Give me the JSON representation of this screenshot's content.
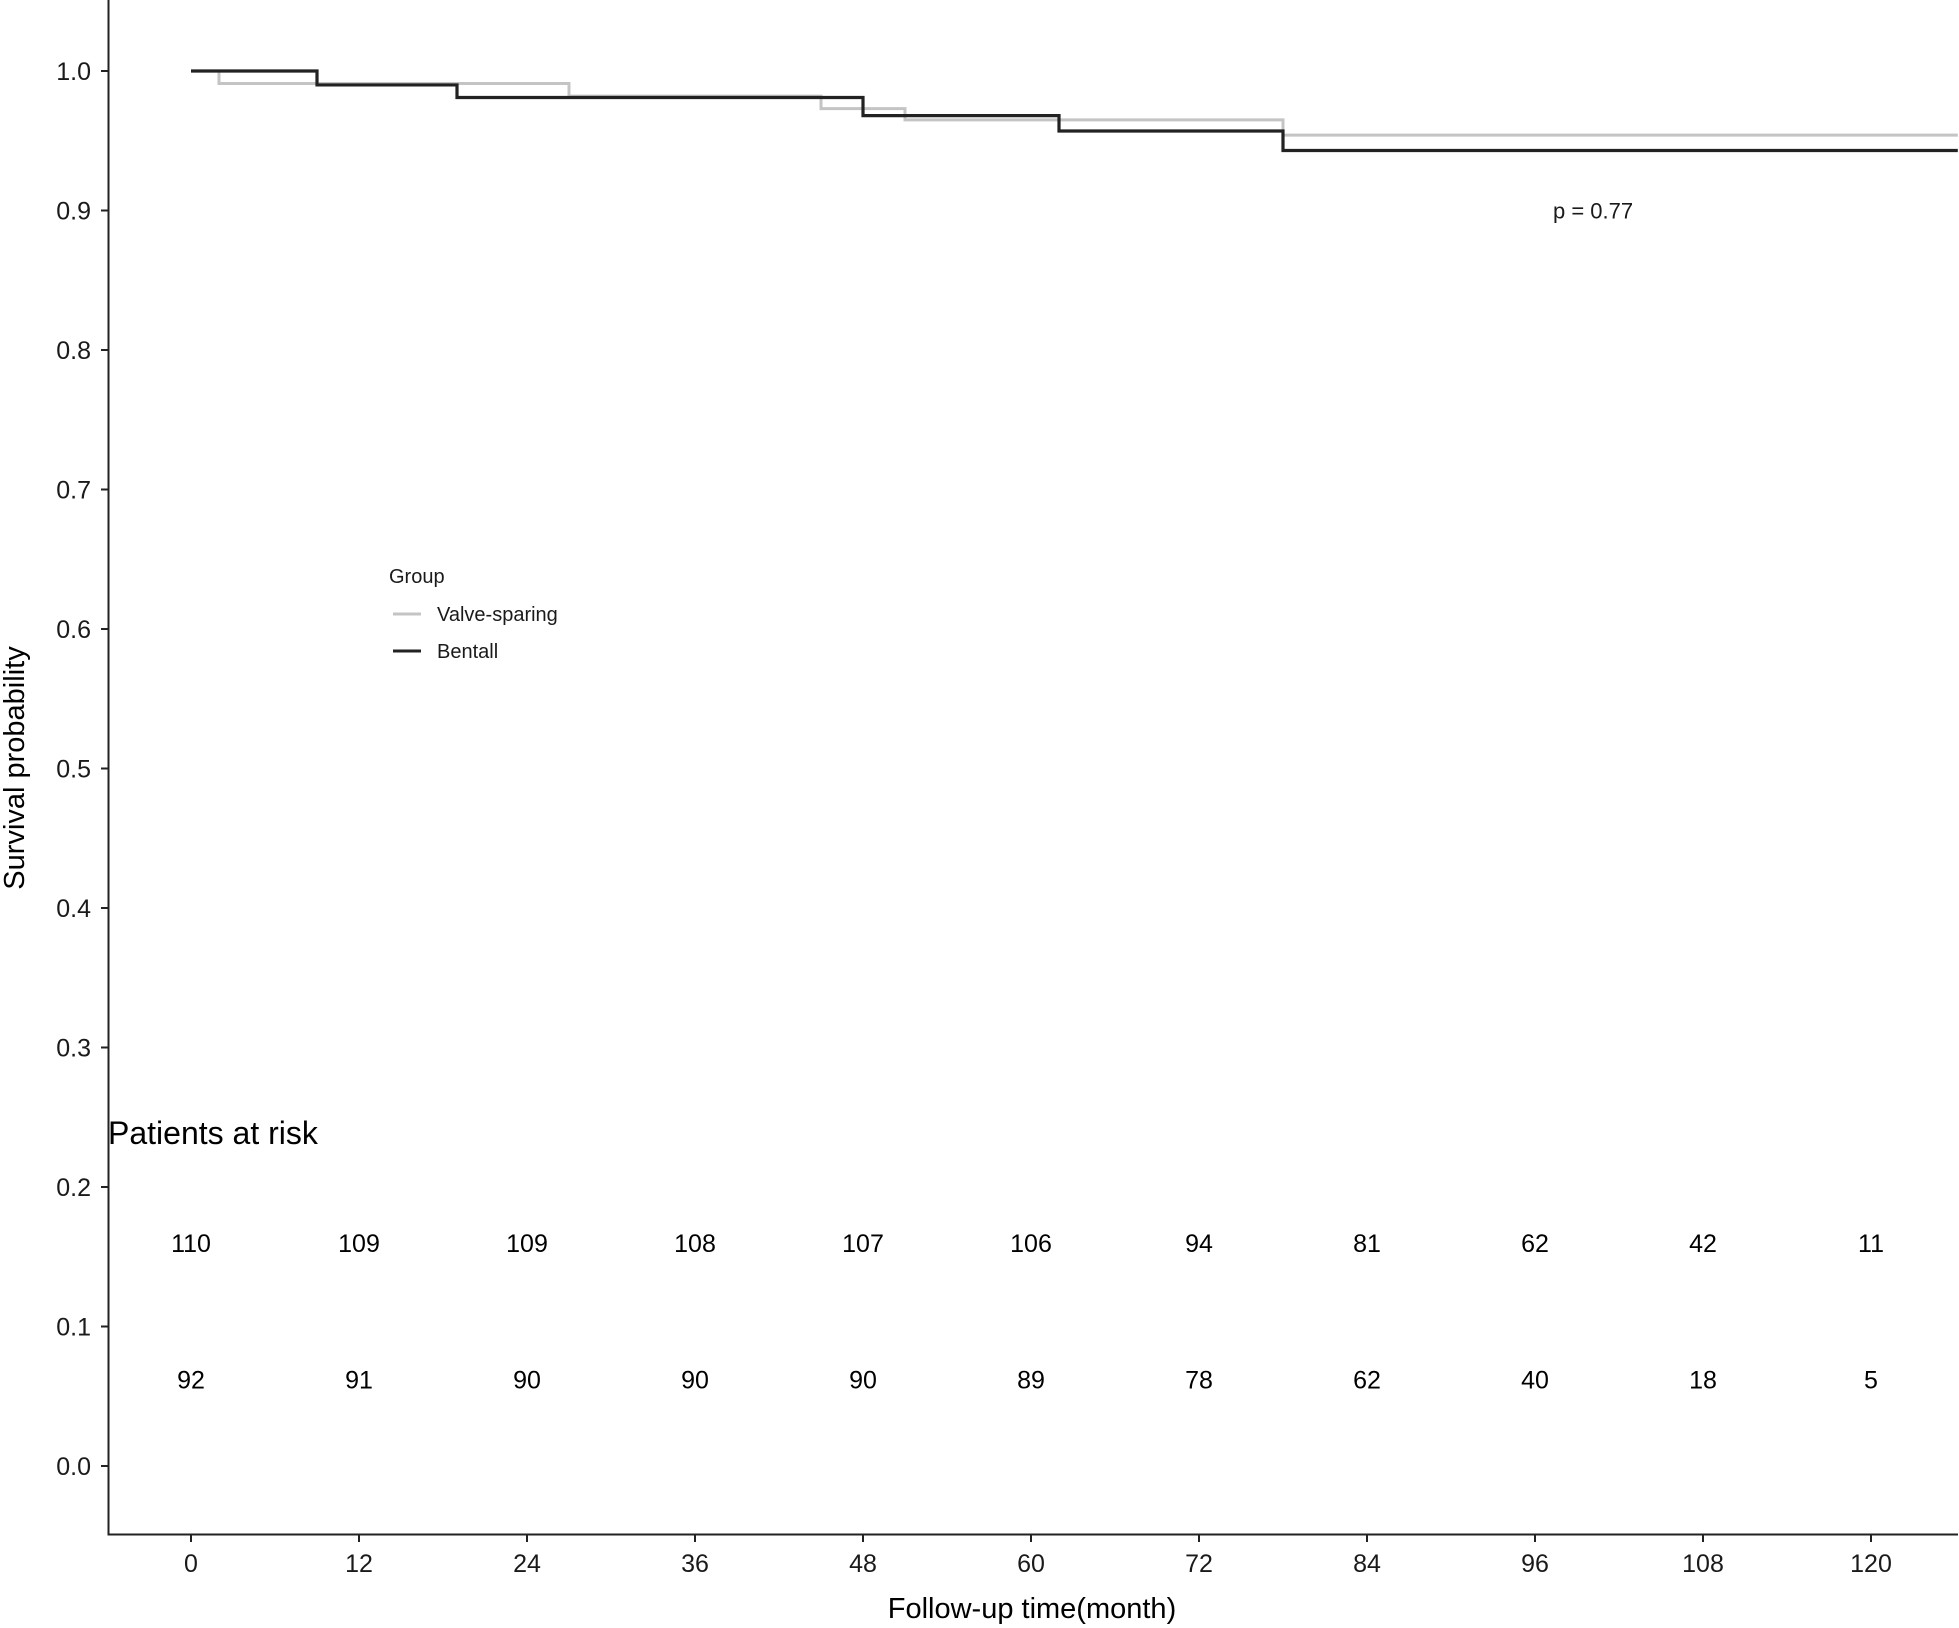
{
  "chart_data": {
    "type": "line",
    "subtype": "kaplan-meier step",
    "title": "",
    "xlabel": "Follow-up time(month)",
    "ylabel": "Survival probability",
    "xlim": [
      -5.9,
      126.2
    ],
    "ylim": [
      -0.049,
      1.051
    ],
    "x_ticks": [
      0,
      12,
      24,
      36,
      48,
      60,
      72,
      84,
      96,
      108,
      120
    ],
    "y_ticks": [
      0.0,
      0.1,
      0.2,
      0.3,
      0.4,
      0.5,
      0.6,
      0.7,
      0.8,
      0.9,
      1.0
    ],
    "y_tick_labels": [
      "0.0",
      "0.1",
      "0.2",
      "0.3",
      "0.4",
      "0.5",
      "0.6",
      "0.7",
      "0.8",
      "0.9",
      "1.0"
    ],
    "grid": false,
    "legend": {
      "title": "Group",
      "position": "inside-left-middle",
      "entries": [
        {
          "label": "Valve-sparing",
          "color": "#c4c4c4"
        },
        {
          "label": "Bentall",
          "color": "#222222"
        }
      ]
    },
    "annotations": [
      {
        "text": "p = 0.77",
        "x": 98,
        "y": 0.9
      }
    ],
    "series": [
      {
        "name": "Valve-sparing",
        "color": "#c4c4c4",
        "steps": [
          {
            "time": 0,
            "survival": 1.0
          },
          {
            "time": 2,
            "survival": 0.991
          },
          {
            "time": 27,
            "survival": 0.982
          },
          {
            "time": 45,
            "survival": 0.973
          },
          {
            "time": 51,
            "survival": 0.965
          },
          {
            "time": 78,
            "survival": 0.954
          }
        ],
        "end_time": 126.2
      },
      {
        "name": "Bentall",
        "color": "#222222",
        "steps": [
          {
            "time": 0,
            "survival": 1.0
          },
          {
            "time": 9,
            "survival": 0.99
          },
          {
            "time": 19,
            "survival": 0.981
          },
          {
            "time": 48,
            "survival": 0.968
          },
          {
            "time": 62,
            "survival": 0.957
          },
          {
            "time": 78,
            "survival": 0.943
          }
        ],
        "end_time": 126.2
      }
    ],
    "risk_table": {
      "title": "Patients at risk",
      "times": [
        0,
        12,
        24,
        36,
        48,
        60,
        72,
        84,
        96,
        108,
        120
      ],
      "rows": [
        {
          "group": "Valve-sparing",
          "values": [
            110,
            109,
            109,
            108,
            107,
            106,
            94,
            81,
            62,
            42,
            11
          ],
          "y_position": 0.16
        },
        {
          "group": "Bentall",
          "values": [
            92,
            91,
            90,
            90,
            90,
            89,
            78,
            62,
            40,
            18,
            5
          ],
          "y_position": 0.062
        }
      ]
    }
  }
}
